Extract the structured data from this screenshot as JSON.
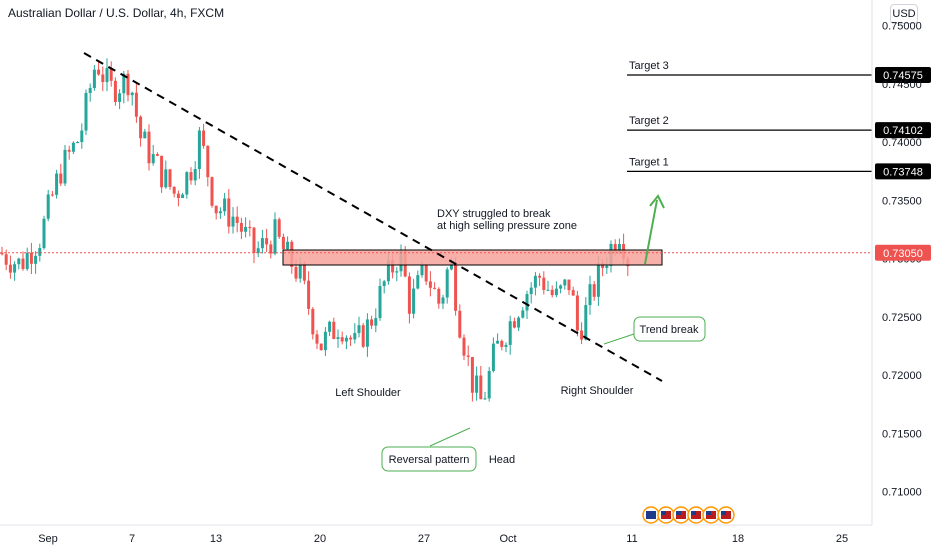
{
  "header": {
    "title": "Australian Dollar / U.S. Dollar, 4h, FXCM",
    "currency": "USD"
  },
  "colors": {
    "up": "#26a69a",
    "down": "#ef5350",
    "zone": "#f7a29b",
    "price_line": "#ef5350",
    "bubble": "#4caf50"
  },
  "chart_data": {
    "type": "candlestick",
    "title": "Australian Dollar / U.S. Dollar, 4h, FXCM",
    "ylim": [
      0.708,
      0.7515
    ],
    "y_ticks": [
      "0.75000",
      "0.74500",
      "0.74000",
      "0.73500",
      "0.73000",
      "0.72500",
      "0.72000",
      "0.71500",
      "0.71000"
    ],
    "x_ticks": [
      "Sep",
      "7",
      "13",
      "20",
      "27",
      "Oct",
      "11",
      "18",
      "25"
    ],
    "last_price": "0.73050",
    "price_tags": [
      {
        "label": "Target 3",
        "value": "0.74575"
      },
      {
        "label": "Target 2",
        "value": "0.74102"
      },
      {
        "label": "Target 1",
        "value": "0.73748"
      }
    ],
    "path": [
      [
        0,
        0.7305
      ],
      [
        20,
        0.7295
      ],
      [
        40,
        0.7318
      ],
      [
        60,
        0.7375
      ],
      [
        80,
        0.7405
      ],
      [
        96,
        0.747
      ],
      [
        110,
        0.7445
      ],
      [
        130,
        0.7455
      ],
      [
        140,
        0.7405
      ],
      [
        160,
        0.7375
      ],
      [
        175,
        0.7355
      ],
      [
        190,
        0.7375
      ],
      [
        200,
        0.7405
      ],
      [
        215,
        0.7345
      ],
      [
        235,
        0.7335
      ],
      [
        255,
        0.7305
      ],
      [
        275,
        0.732
      ],
      [
        285,
        0.7305
      ],
      [
        300,
        0.7285
      ],
      [
        320,
        0.7225
      ],
      [
        340,
        0.7245
      ],
      [
        355,
        0.7225
      ],
      [
        370,
        0.7245
      ],
      [
        385,
        0.728
      ],
      [
        400,
        0.7305
      ],
      [
        410,
        0.726
      ],
      [
        425,
        0.729
      ],
      [
        440,
        0.726
      ],
      [
        450,
        0.73
      ],
      [
        460,
        0.7245
      ],
      [
        472,
        0.7195
      ],
      [
        482,
        0.7175
      ],
      [
        495,
        0.722
      ],
      [
        510,
        0.7245
      ],
      [
        525,
        0.727
      ],
      [
        540,
        0.7285
      ],
      [
        555,
        0.7265
      ],
      [
        570,
        0.728
      ],
      [
        578,
        0.7235
      ],
      [
        590,
        0.7265
      ],
      [
        605,
        0.73
      ],
      [
        620,
        0.7325
      ],
      [
        628,
        0.73
      ]
    ],
    "annotations": {
      "zone_text": [
        "DXY struggled to break",
        "at high selling pressure zone"
      ],
      "left_shoulder": "Left Shoulder",
      "head": "Head",
      "right_shoulder": "Right Shoulder",
      "reversal": "Reversal pattern",
      "trend_break": "Trend break"
    }
  }
}
